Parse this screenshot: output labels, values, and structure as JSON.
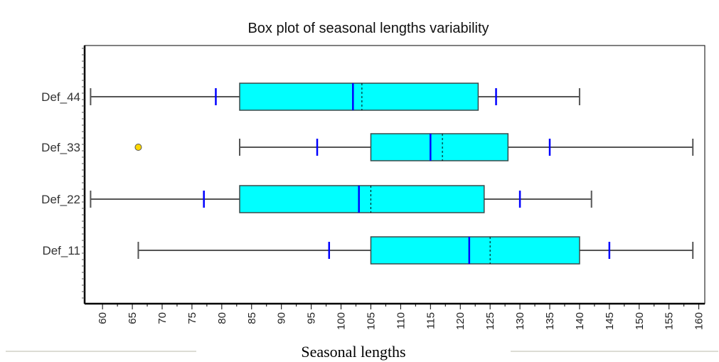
{
  "chart_data": {
    "type": "boxplot",
    "title": "Box plot of seasonal lengths variability",
    "xlabel": "Seasonal lengths",
    "ylabel": "",
    "xlim": [
      57,
      161
    ],
    "ticks": [
      60,
      65,
      70,
      75,
      80,
      85,
      90,
      95,
      100,
      105,
      110,
      115,
      120,
      125,
      130,
      135,
      140,
      145,
      150,
      155,
      160
    ],
    "orientation": "horizontal",
    "grid": false,
    "colors": {
      "box_fill": "#00ffff",
      "median_line": "#0000ff",
      "percentile_marker": "#0000ff",
      "whisker": "#555555",
      "outlier_fill": "#ffd700"
    },
    "categories": [
      "Def_44",
      "Def_33",
      "Def_22",
      "Def_11"
    ],
    "series": [
      {
        "category": "Def_44",
        "whisker_low": 58,
        "p10": 79,
        "q1": 83,
        "median": 102,
        "mean": 103.5,
        "q3": 123,
        "p90": 126,
        "whisker_high": 140,
        "outliers": []
      },
      {
        "category": "Def_33",
        "whisker_low": 83,
        "p10": 96,
        "q1": 105,
        "median": 115,
        "mean": 117,
        "q3": 128,
        "p90": 135,
        "whisker_high": 159,
        "outliers": [
          66
        ]
      },
      {
        "category": "Def_22",
        "whisker_low": 58,
        "p10": 77,
        "q1": 83,
        "median": 103,
        "mean": 105,
        "q3": 124,
        "p90": 130,
        "whisker_high": 142,
        "outliers": []
      },
      {
        "category": "Def_11",
        "whisker_low": 66,
        "p10": 98,
        "q1": 105,
        "median": 121.5,
        "mean": 125,
        "q3": 140,
        "p90": 145,
        "whisker_high": 159,
        "outliers": []
      }
    ]
  }
}
